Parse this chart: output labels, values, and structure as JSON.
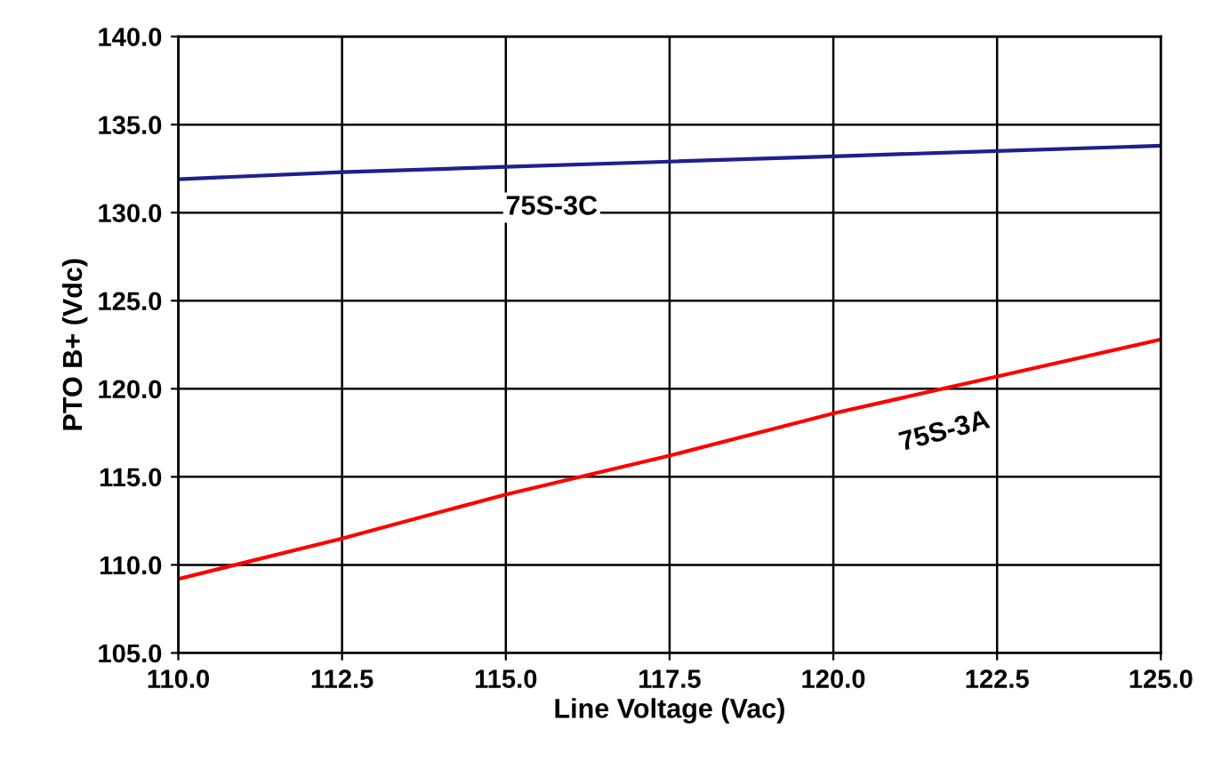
{
  "chart_data": {
    "type": "line",
    "xlabel": "Line Voltage (Vac)",
    "ylabel": "PTO B+ (Vdc)",
    "xlim": [
      110,
      125
    ],
    "xticks": [
      {
        "value": 110,
        "label": "110.0"
      },
      {
        "value": 112.5,
        "label": "112.5"
      },
      {
        "value": 115,
        "label": "115.0"
      },
      {
        "value": 117.5,
        "label": "117.5"
      },
      {
        "value": 120,
        "label": "120.0"
      },
      {
        "value": 122.5,
        "label": "122.5"
      },
      {
        "value": 125,
        "label": "125.0"
      }
    ],
    "ylim": [
      105,
      140
    ],
    "yticks": [
      {
        "value": 105,
        "label": "105.0"
      },
      {
        "value": 110,
        "label": "110.0"
      },
      {
        "value": 115,
        "label": "115.0"
      },
      {
        "value": 120,
        "label": "120.0"
      },
      {
        "value": 125,
        "label": "125.0"
      },
      {
        "value": 130,
        "label": "130.0"
      },
      {
        "value": 135,
        "label": "135.0"
      },
      {
        "value": 140,
        "label": "140.0"
      }
    ],
    "x": [
      110,
      112.5,
      115,
      117.5,
      120,
      122.5,
      125
    ],
    "series": [
      {
        "name": "75S-3C",
        "color": "#1f1f8f",
        "values": [
          131.9,
          132.3,
          132.6,
          132.9,
          133.2,
          133.5,
          133.8
        ]
      },
      {
        "name": "75S-3A",
        "color": "#ff0000",
        "values": [
          109.2,
          111.5,
          114.0,
          116.2,
          118.6,
          120.7,
          122.8
        ]
      }
    ],
    "grid": true,
    "legend": false,
    "marker": "none",
    "line_style": "solid"
  }
}
